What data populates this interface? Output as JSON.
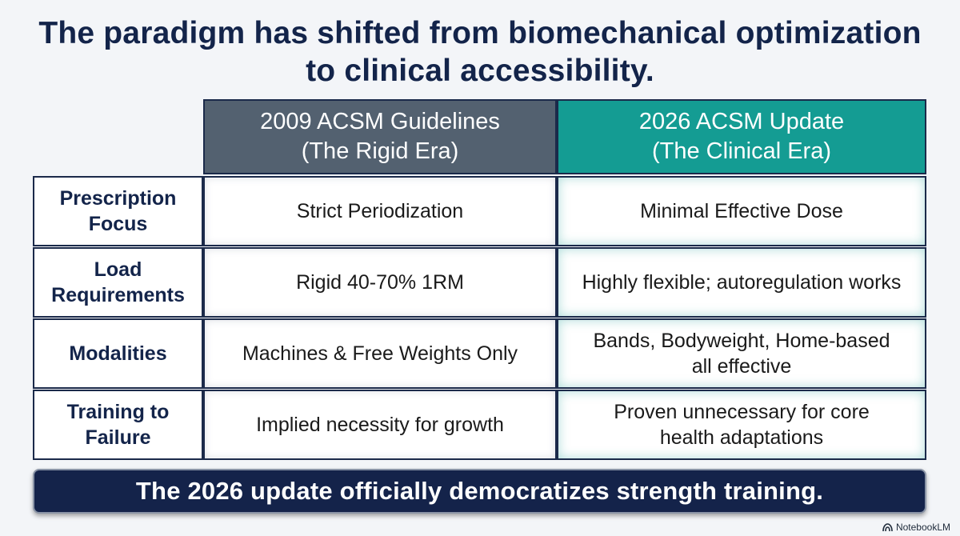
{
  "title": {
    "line1": "The paradigm has shifted from biomechanical optimization",
    "line2": "to clinical accessibility."
  },
  "columns": {
    "old": {
      "line1": "2009 ACSM Guidelines",
      "line2": "(The Rigid Era)"
    },
    "new": {
      "line1": "2026 ACSM Update",
      "line2": "(The Clinical Era)"
    }
  },
  "rows": [
    {
      "label": "Prescription Focus",
      "old": "Strict Periodization",
      "new": "Minimal Effective Dose"
    },
    {
      "label": "Load Requirements",
      "old": "Rigid 40-70% 1RM",
      "new": "Highly flexible; autoregulation works"
    },
    {
      "label": "Modalities",
      "old": "Machines & Free Weights Only",
      "new": "Bands, Bodyweight, Home-based all effective"
    },
    {
      "label": "Training to Failure",
      "old": "Implied necessity for growth",
      "new": "Proven unnecessary for core health adaptations"
    }
  ],
  "banner": "The 2026 update officially democratizes strength training.",
  "watermark": {
    "label": "NotebookLM",
    "icon": "notebooklm-logo-icon"
  },
  "colors": {
    "title": "#13244a",
    "old_header": "#536170",
    "new_header": "#149c93",
    "banner": "#14234a",
    "border": "#1b2a4a"
  }
}
